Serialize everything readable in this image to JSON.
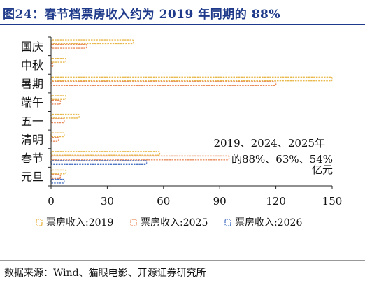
{
  "title": "图24：春节档票房收入约为 2019 年同期的 88%",
  "source": "数据来源：Wind、猫眼电影、开源证券研究所",
  "colors": {
    "title": "#1f3a8a",
    "s2019": "#e8b84a",
    "s2025": "#e98a5b",
    "s2026": "#4a72c4"
  },
  "chart_data": {
    "type": "bar",
    "orientation": "horizontal",
    "categories": [
      "国庆",
      "中秋",
      "暑期",
      "端午",
      "五一",
      "清明",
      "春节",
      "元旦"
    ],
    "series": [
      {
        "name": "票房收入:2019",
        "values": [
          44,
          8,
          150,
          8,
          15,
          7,
          58,
          8
        ]
      },
      {
        "name": "票房收入:2025",
        "values": [
          19,
          1,
          120,
          5,
          7,
          4,
          95,
          5
        ]
      },
      {
        "name": "票房收入:2026",
        "values": [
          null,
          null,
          null,
          null,
          null,
          null,
          51,
          7
        ]
      }
    ],
    "xlim": [
      0,
      150
    ],
    "xticks": [
      "0",
      "30",
      "60",
      "90",
      "120",
      "150"
    ],
    "grid": false,
    "legend_position": "bottom",
    "annotation": [
      "2019、2024、2025年",
      "的88%、63%、54%",
      "亿元"
    ]
  }
}
